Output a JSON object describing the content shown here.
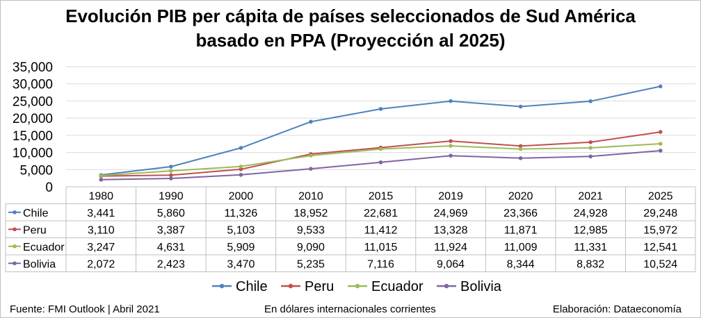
{
  "chart_data": {
    "type": "line",
    "title": "Evolución PIB per cápita de países seleccionados de Sud América basado en PPA (Proyección al 2025)",
    "title_lines": [
      "Evolución PIB per cápita de países seleccionados de Sud América",
      "basado en PPA (Proyección al 2025)"
    ],
    "categories": [
      "1980",
      "1990",
      "2000",
      "2010",
      "2015",
      "2019",
      "2020",
      "2021",
      "2025"
    ],
    "ylim": [
      0,
      35000
    ],
    "yticks": [
      0,
      5000,
      10000,
      15000,
      20000,
      25000,
      30000,
      35000
    ],
    "ytick_labels": [
      "0",
      "5,000",
      "10,000",
      "15,000",
      "20,000",
      "25,000",
      "30,000",
      "35,000"
    ],
    "grid": true,
    "legend_position": "bottom",
    "data_table": true,
    "series": [
      {
        "name": "Chile",
        "color": "#4f81bd",
        "values": [
          3441,
          5860,
          11326,
          18952,
          22681,
          24969,
          23366,
          24928,
          29248
        ],
        "labels": [
          "3,441",
          "5,860",
          "11,326",
          "18,952",
          "22,681",
          "24,969",
          "23,366",
          "24,928",
          "29,248"
        ]
      },
      {
        "name": "Peru",
        "color": "#c0504d",
        "values": [
          3110,
          3387,
          5103,
          9533,
          11412,
          13328,
          11871,
          12985,
          15972
        ],
        "labels": [
          "3,110",
          "3,387",
          "5,103",
          "9,533",
          "11,412",
          "13,328",
          "11,871",
          "12,985",
          "15,972"
        ]
      },
      {
        "name": "Ecuador",
        "color": "#9bbb59",
        "values": [
          3247,
          4631,
          5909,
          9090,
          11015,
          11924,
          11009,
          11331,
          12541
        ],
        "labels": [
          "3,247",
          "4,631",
          "5,909",
          "9,090",
          "11,015",
          "11,924",
          "11,009",
          "11,331",
          "12,541"
        ]
      },
      {
        "name": "Bolivia",
        "color": "#8064a2",
        "values": [
          2072,
          2423,
          3470,
          5235,
          7116,
          9064,
          8344,
          8832,
          10524
        ],
        "labels": [
          "2,072",
          "2,423",
          "3,470",
          "5,235",
          "7,116",
          "9,064",
          "8,344",
          "8,832",
          "10,524"
        ]
      }
    ]
  },
  "footer": {
    "source": "Fuente: FMI Outlook | Abril 2021",
    "units": "En dólares internacionales corrientes",
    "credit": "Elaboración: Dataeconomía"
  }
}
